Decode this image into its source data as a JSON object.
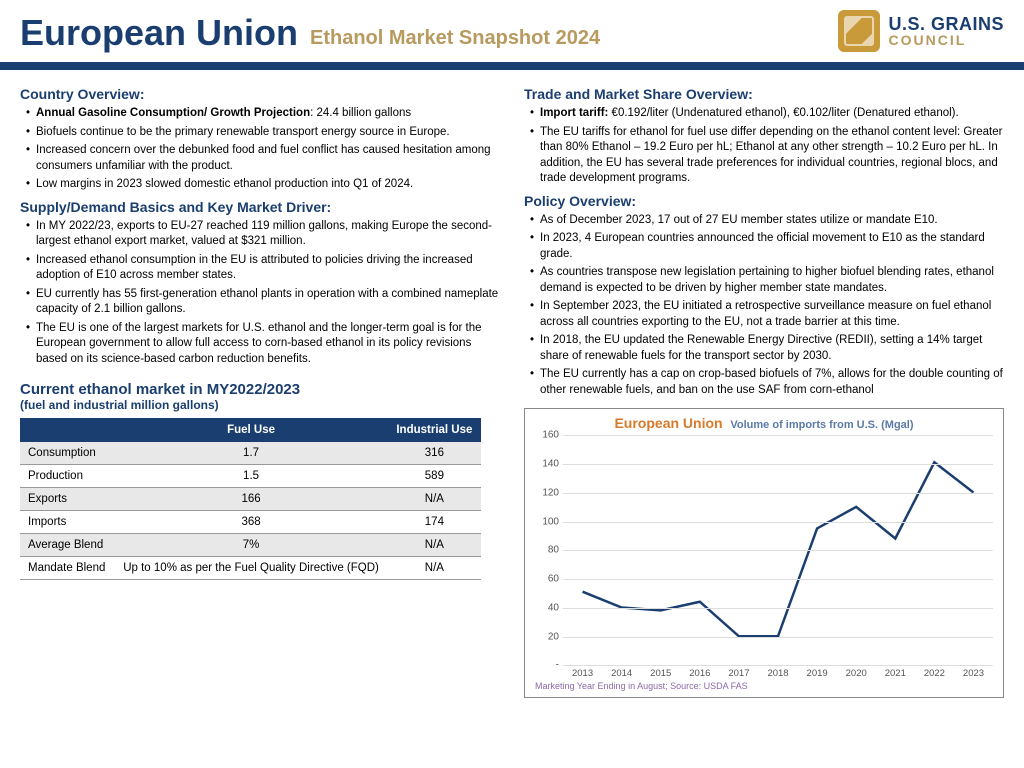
{
  "header": {
    "title_main": "European Union",
    "title_sub": "Ethanol Market Snapshot 2024",
    "logo_line1": "U.S. GRAINS",
    "logo_line2": "COUNCIL",
    "logo_bg": "#c89a3a"
  },
  "left": {
    "country_head": "Country Overview:",
    "country_items": [
      {
        "lead": "Annual Gasoline Consumption/ Growth Projection",
        "rest": ": 24.4 billion gallons"
      },
      {
        "rest": "Biofuels continue to be the primary renewable transport energy source in Europe."
      },
      {
        "rest": "Increased concern over the debunked food and fuel conflict has caused hesitation among consumers unfamiliar with the product."
      },
      {
        "rest": "Low margins in 2023 slowed domestic ethanol production into Q1 of 2024."
      }
    ],
    "supply_head": "Supply/Demand Basics and Key Market Driver:",
    "supply_items": [
      "In MY 2022/23, exports to EU-27 reached 119 million gallons, making Europe the second-largest ethanol export market, valued at $321 million.",
      "Increased ethanol consumption in the EU is attributed to policies driving the increased adoption of E10 across member states.",
      "EU currently has 55 first-generation ethanol plants in operation with a combined nameplate capacity of 2.1 billion gallons.",
      "The EU is one of the largest markets for U.S. ethanol and the longer-term goal is for the European government to allow full access to corn-based ethanol in its policy revisions based on its science-based carbon reduction benefits."
    ],
    "table_head": "Current ethanol market in MY2022/2023",
    "table_sub": "(fuel and industrial million gallons)",
    "table": {
      "columns": [
        "",
        "Fuel Use",
        "Industrial Use"
      ],
      "rows": [
        [
          "Consumption",
          "1.7",
          "316"
        ],
        [
          "Production",
          "1.5",
          "589"
        ],
        [
          "Exports",
          "166",
          "N/A"
        ],
        [
          "Imports",
          "368",
          "174"
        ],
        [
          "Average Blend",
          "7%",
          "N/A"
        ],
        [
          "Mandate Blend",
          "Up to 10% as per the Fuel Quality Directive (FQD)",
          "N/A"
        ]
      ],
      "header_bg": "#1a3e6f",
      "header_color": "#ffffff",
      "row_odd_bg": "#e8e8e8",
      "row_even_bg": "#ffffff"
    }
  },
  "right": {
    "trade_head": "Trade and Market Share Overview:",
    "trade_items": [
      {
        "lead": "Import tariff:",
        "rest": " €0.192/liter (Undenatured ethanol), €0.102/liter (Denatured ethanol)."
      },
      {
        "rest": "The EU tariffs for ethanol for fuel use differ depending on the ethanol content level: Greater than 80% Ethanol – 19.2 Euro per hL; Ethanol at any other strength – 10.2 Euro per hL.  In addition, the EU has several trade preferences for individual countries, regional blocs, and trade development programs."
      }
    ],
    "policy_head": "Policy Overview:",
    "policy_items": [
      "As of December 2023, 17 out of 27 EU member states utilize or mandate E10.",
      "In 2023, 4 European countries announced the official movement to E10 as the standard grade.",
      "As countries transpose new legislation pertaining to higher biofuel blending rates, ethanol demand is expected to be driven by higher member state mandates.",
      "In September 2023, the EU initiated a retrospective surveillance measure on fuel ethanol across all countries exporting to the EU, not a trade barrier at this time.",
      "In 2018, the EU updated the Renewable Energy Directive (REDII), setting a 14% target share of renewable fuels for the transport sector by 2030.",
      "The EU currently has a cap on crop-based biofuels of 7%, allows for the double counting of other renewable fuels, and ban on the use SAF from corn-ethanol"
    ],
    "chart": {
      "title_main": "European Union",
      "title_sub": "Volume of imports from U.S. (Mgal)",
      "title_main_color": "#d87a2a",
      "title_sub_color": "#5a7aa8",
      "x_labels": [
        "2013",
        "2014",
        "2015",
        "2016",
        "2017",
        "2018",
        "2019",
        "2020",
        "2021",
        "2022",
        "2023"
      ],
      "y_ticks": [
        "-",
        "20",
        "40",
        "60",
        "80",
        "100",
        "120",
        "140",
        "160"
      ],
      "ylim": [
        0,
        160
      ],
      "values": [
        51,
        40,
        38,
        44,
        20,
        20,
        95,
        110,
        88,
        141,
        120
      ],
      "line_color": "#1a3e6f",
      "line_width": 2.5,
      "grid_color": "#dddddd",
      "footer": "Marketing Year Ending in August; Source: USDA FAS",
      "footer_color": "#8a6aa8"
    }
  },
  "colors": {
    "brand_navy": "#1a3e6f",
    "brand_gold": "#b89a5f"
  }
}
